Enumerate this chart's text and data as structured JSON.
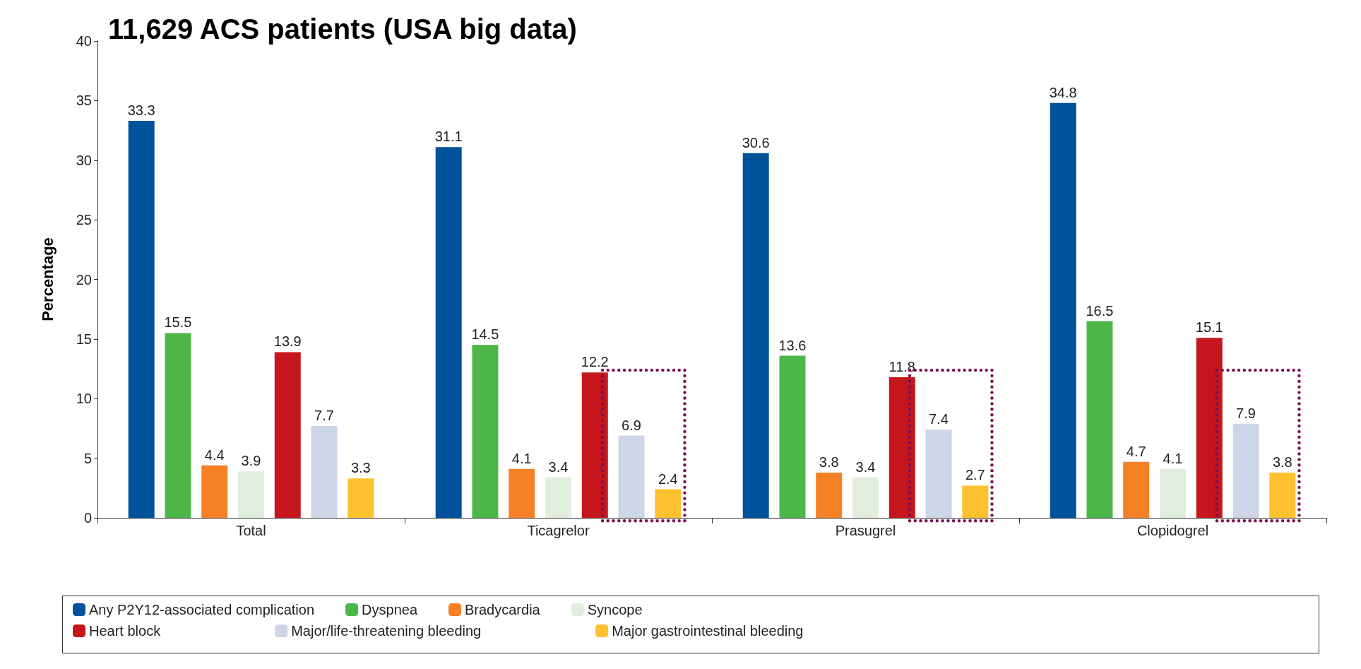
{
  "chart_data": {
    "type": "bar",
    "title": "11,629 ACS patients (USA big data)",
    "ylabel": "Percentage",
    "categories": [
      "Total",
      "Ticagrelor",
      "Prasugrel",
      "Clopidogrel"
    ],
    "series": [
      {
        "name": "Any P2Y12-associated complication",
        "color": "#00529b",
        "values": [
          33.3,
          31.1,
          30.6,
          34.8
        ]
      },
      {
        "name": "Dyspnea",
        "color": "#4cb748",
        "values": [
          15.5,
          14.5,
          13.6,
          16.5
        ]
      },
      {
        "name": "Bradycardia",
        "color": "#f58025",
        "values": [
          4.4,
          4.1,
          3.8,
          4.7
        ]
      },
      {
        "name": "Syncope",
        "color": "#e2eedd",
        "values": [
          3.9,
          3.4,
          3.4,
          4.1
        ]
      },
      {
        "name": "Heart block",
        "color": "#c4161c",
        "values": [
          13.9,
          12.2,
          11.8,
          15.1
        ]
      },
      {
        "name": "Major/life-threatening bleeding",
        "color": "#cdd5e6",
        "values": [
          7.7,
          6.9,
          7.4,
          7.9
        ]
      },
      {
        "name": "Major gastrointestinal bleeding",
        "color": "#fdc02f",
        "values": [
          3.3,
          2.4,
          2.7,
          3.8
        ]
      }
    ],
    "ylim": [
      0,
      40
    ],
    "yticks": [
      0,
      5,
      10,
      15,
      20,
      25,
      30,
      35,
      40
    ],
    "data_labels": true,
    "grid": false,
    "legend": "bottom"
  }
}
